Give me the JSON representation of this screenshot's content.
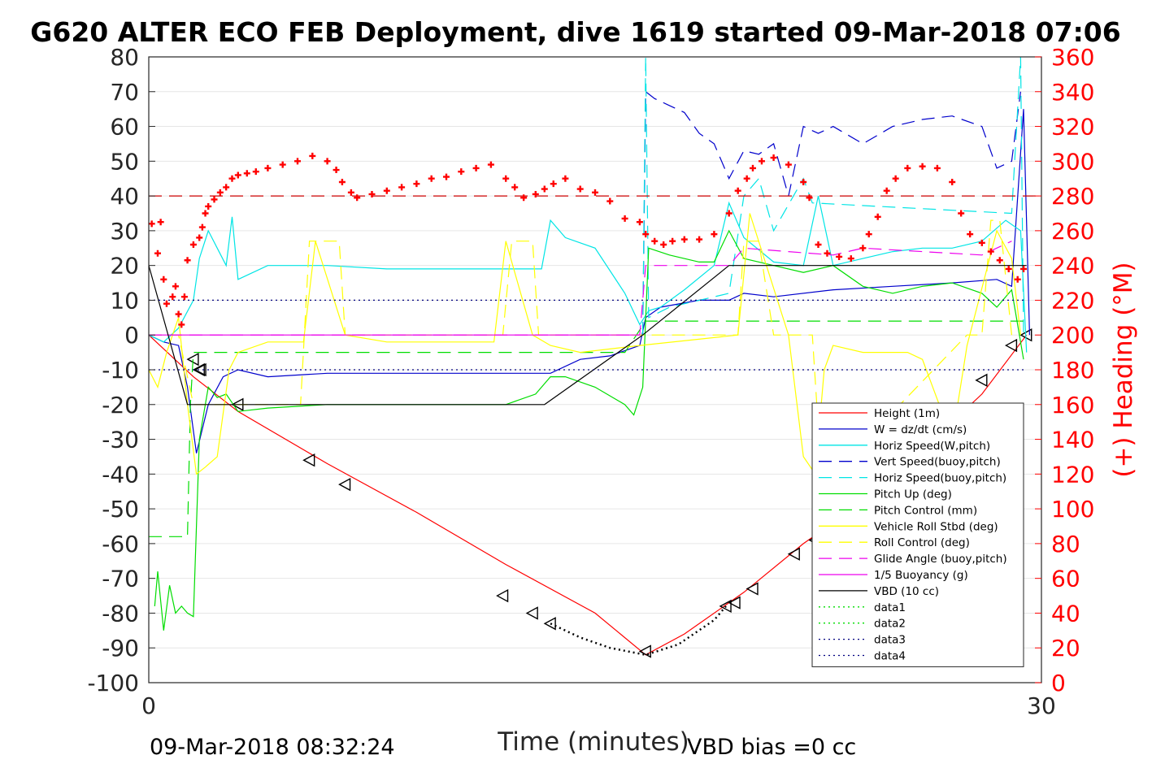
{
  "chart_data": {
    "type": "line",
    "title": "G620 ALTER ECO FEB Deployment, dive 1619 started 09-Mar-2018 07:06",
    "xlabel": "Time (minutes)",
    "ylabel": "",
    "ylabel_right": "(+) Heading (°M)",
    "xlim": [
      0,
      30
    ],
    "ylim": [
      -100,
      80
    ],
    "ylim_right": [
      0,
      360
    ],
    "x_ticks": [
      "0",
      "30"
    ],
    "y_ticks": [
      "80",
      "70",
      "60",
      "50",
      "40",
      "30",
      "20",
      "10",
      "0",
      "-10",
      "-20",
      "-30",
      "-40",
      "-50",
      "-60",
      "-70",
      "-80",
      "-90",
      "-100"
    ],
    "y_ticks_right": [
      "360",
      "340",
      "320",
      "300",
      "280",
      "260",
      "240",
      "220",
      "200",
      "180",
      "160",
      "140",
      "120",
      "100",
      "80",
      "60",
      "40",
      "20",
      "0"
    ],
    "grid": true,
    "legend_position": "bottom-right",
    "colors": {
      "height": "#ff0000",
      "w": "#0000cc",
      "horiz_speed": "#00e5e5",
      "pitch": "#00dd00",
      "roll": "#ffff00",
      "glide": "#ee00ee",
      "vbd": "#000000",
      "heading": "#ff0000",
      "ref_dark_blue": "#000080",
      "ref_red_dashed": "#cc0000"
    },
    "legend": [
      {
        "label": "Height (1m)",
        "color": "#ff0000",
        "dash": "solid"
      },
      {
        "label": "W = dz/dt (cm/s)",
        "color": "#0000cc",
        "dash": "solid"
      },
      {
        "label": "Horiz Speed(W,pitch)",
        "color": "#00e5e5",
        "dash": "solid"
      },
      {
        "label": "Vert Speed(buoy,pitch)",
        "color": "#0000cc",
        "dash": "dashed"
      },
      {
        "label": "Horiz Speed(buoy,pitch)",
        "color": "#00e5e5",
        "dash": "dashed"
      },
      {
        "label": "Pitch Up (deg)",
        "color": "#00dd00",
        "dash": "solid"
      },
      {
        "label": "Pitch Control (mm)",
        "color": "#00dd00",
        "dash": "dashed"
      },
      {
        "label": "Vehicle Roll Stbd (deg)",
        "color": "#ffff00",
        "dash": "solid"
      },
      {
        "label": "Roll Control (deg)",
        "color": "#ffff00",
        "dash": "dashed"
      },
      {
        "label": "Glide Angle (buoy,pitch)",
        "color": "#ee00ee",
        "dash": "dashed"
      },
      {
        "label": "1/5 Buoyancy (g)",
        "color": "#ee00ee",
        "dash": "solid"
      },
      {
        "label": "VBD (10 cc)",
        "color": "#000000",
        "dash": "solid"
      },
      {
        "label": "data1",
        "color": "#00dd00",
        "dash": "dotted"
      },
      {
        "label": "data2",
        "color": "#00dd00",
        "dash": "dotted"
      },
      {
        "label": "data3",
        "color": "#000080",
        "dash": "dotted"
      },
      {
        "label": "data4",
        "color": "#000080",
        "dash": "dotted"
      }
    ],
    "series": [
      {
        "key": "height",
        "legend": "Height (1m)",
        "axis": "left",
        "color": "#ff0000",
        "dash": "solid",
        "x": [
          0,
          1.5,
          3,
          6,
          9,
          12,
          15,
          16.7,
          18,
          20,
          22,
          24,
          26,
          28,
          29.5
        ],
        "y": [
          0,
          -12,
          -22,
          -37,
          -51,
          -66,
          -80,
          -92,
          -86,
          -74,
          -60,
          -48,
          -33,
          -17,
          0
        ]
      },
      {
        "key": "dive_markers",
        "legend": "",
        "axis": "left",
        "color": "#000000",
        "marker": "triangle-left",
        "x": [
          1.5,
          1.7,
          1.75,
          3,
          5.4,
          6.6,
          11.9,
          12.9,
          13.5,
          16.7,
          19.4,
          19.7,
          20.3,
          21.7,
          22.4,
          24.0,
          28.0,
          29.0,
          29.5
        ],
        "y": [
          -7,
          -10,
          -10,
          -20,
          -36,
          -43,
          -75,
          -80,
          -83,
          -91,
          -78,
          -77,
          -73,
          -63,
          -59,
          -47,
          -13,
          -3,
          0
        ]
      },
      {
        "key": "gps_tail",
        "legend": "",
        "axis": "left",
        "color": "#000000",
        "dash": "dotted",
        "x": [
          13.5,
          14.5,
          15.5,
          16.7,
          17.8,
          19.0,
          19.4
        ],
        "y": [
          -83,
          -87,
          -90,
          -92,
          -89,
          -82,
          -78
        ]
      },
      {
        "key": "w",
        "legend": "W = dz/dt (cm/s)",
        "axis": "left",
        "color": "#0000cc",
        "dash": "solid",
        "x": [
          0,
          0.5,
          1.0,
          1.3,
          1.6,
          2.0,
          2.5,
          3.0,
          4.0,
          6.0,
          8.0,
          10.0,
          12.0,
          13.5,
          14.5,
          15.5,
          16.5,
          16.7,
          17.2,
          18.5,
          19.5,
          20.0,
          21.0,
          23.0,
          25.0,
          27.0,
          28.5,
          29.0,
          29.4,
          29.6
        ],
        "y": [
          0,
          -2,
          -3,
          -15,
          -34,
          -20,
          -12,
          -10,
          -12,
          -11,
          -11,
          -11,
          -11,
          -11,
          -7,
          -6,
          -3,
          5,
          8,
          10,
          10,
          12,
          11,
          13,
          14,
          15,
          16,
          14,
          65,
          0
        ]
      },
      {
        "key": "horiz_speed",
        "legend": "Horiz Speed(W,pitch)",
        "axis": "left",
        "color": "#00e5e5",
        "dash": "solid",
        "x": [
          0,
          0.5,
          1.0,
          1.5,
          1.7,
          2.0,
          2.3,
          2.6,
          2.8,
          3.0,
          4.0,
          6.0,
          8.0,
          10.0,
          12.0,
          13.2,
          13.5,
          14.0,
          15.0,
          16.0,
          16.5,
          16.8,
          17.2,
          18.0,
          19.0,
          19.5,
          20.0,
          21.0,
          22.0,
          22.5,
          23.0,
          24.0,
          25.0,
          26.0,
          27.0,
          28.0,
          28.8,
          29.3,
          29.5
        ],
        "y": [
          0,
          -2,
          2,
          10,
          22,
          30,
          25,
          20,
          34,
          16,
          20,
          20,
          19,
          19,
          19,
          19,
          33,
          28,
          25,
          12,
          3,
          7,
          8,
          13,
          20,
          38,
          28,
          21,
          20,
          40,
          20,
          22,
          24,
          25,
          25,
          27,
          33,
          30,
          -5
        ]
      },
      {
        "key": "vert_speed_buoy",
        "legend": "Vert Speed(buoy,pitch)",
        "axis": "left",
        "color": "#0000cc",
        "dash": "dashed",
        "x": [
          16.6,
          16.7,
          17.0,
          17.5,
          18.0,
          18.5,
          19.0,
          19.5,
          20.0,
          20.5,
          21.0,
          21.5,
          22.0,
          22.5,
          23.0,
          24.0,
          25.0,
          26.0,
          27.0,
          28.0,
          28.5,
          29.0,
          29.3
        ],
        "y": [
          0,
          70,
          68,
          66,
          64,
          58,
          55,
          45,
          53,
          52,
          55,
          40,
          60,
          58,
          60,
          55,
          60,
          62,
          63,
          60,
          48,
          50,
          70
        ]
      },
      {
        "key": "horiz_speed_buoy",
        "legend": "Horiz Speed(buoy,pitch)",
        "axis": "left",
        "color": "#00e5e5",
        "dash": "dashed",
        "x": [
          16.6,
          16.7,
          16.8,
          17.5,
          19.5,
          20.0,
          20.5,
          21.0,
          22.0,
          22.3,
          29.0,
          29.3,
          29.4
        ],
        "y": [
          0,
          80,
          5,
          8,
          12,
          40,
          45,
          30,
          45,
          38,
          35,
          80,
          0
        ]
      },
      {
        "key": "pitch",
        "legend": "Pitch Up (deg)",
        "axis": "left",
        "color": "#00dd00",
        "dash": "solid",
        "x": [
          0.2,
          0.3,
          0.5,
          0.7,
          0.9,
          1.1,
          1.3,
          1.5,
          1.7,
          2.0,
          2.3,
          2.6,
          3.0,
          4.0,
          6.0,
          8.0,
          10.0,
          12.0,
          13.0,
          13.5,
          14.0,
          15.0,
          16.0,
          16.3,
          16.6,
          16.8,
          17.5,
          18.5,
          19.0,
          19.5,
          20.0,
          21.0,
          22.0,
          23.0,
          24.0,
          25.0,
          26.0,
          27.0,
          28.0,
          28.5,
          29.0,
          29.4
        ],
        "y": [
          -78,
          -68,
          -85,
          -72,
          -80,
          -78,
          -80,
          -81,
          -30,
          -15,
          -18,
          -17,
          -22,
          -21,
          -20,
          -20,
          -20,
          -20,
          -17,
          -12,
          -12,
          -15,
          -20,
          -23,
          -15,
          25,
          23,
          21,
          21,
          30,
          22,
          20,
          18,
          20,
          14,
          12,
          14,
          15,
          12,
          8,
          13,
          -7
        ]
      },
      {
        "key": "pitch_control",
        "legend": "Pitch Control (mm)",
        "axis": "left",
        "color": "#00dd00",
        "dash": "dashed",
        "x": [
          0,
          1.3,
          1.4,
          1.5,
          8,
          16,
          16.7,
          18,
          24,
          29.5
        ],
        "y": [
          -58,
          -58,
          -20,
          -5,
          -5,
          -5,
          4,
          4,
          4,
          4
        ]
      },
      {
        "key": "roll",
        "legend": "Vehicle Roll Stbd (deg)",
        "axis": "left",
        "color": "#ffff00",
        "dash": "solid",
        "x": [
          0,
          0.3,
          0.6,
          1.0,
          1.3,
          1.6,
          1.9,
          2.3,
          2.7,
          3.0,
          4.0,
          5.2,
          5.6,
          6.6,
          8.0,
          11.6,
          12.0,
          12.9,
          13.5,
          14.5,
          16.5,
          19.8,
          20.2,
          21.5,
          22.0,
          22.4,
          22.7,
          23.0,
          24.0,
          25.5,
          26.0,
          27.0,
          27.5,
          28.5,
          29.0,
          29.3
        ],
        "y": [
          -10,
          -15,
          -5,
          5,
          -20,
          -40,
          -38,
          -35,
          -10,
          -5,
          -2,
          -2,
          27,
          0,
          -2,
          -2,
          27,
          0,
          -3,
          -5,
          -3,
          0,
          35,
          0,
          -35,
          -40,
          -10,
          -3,
          -5,
          -5,
          -7,
          -30,
          -3,
          30,
          22,
          0
        ]
      },
      {
        "key": "roll_control",
        "legend": "Roll Control (deg)",
        "axis": "left",
        "color": "#ffff00",
        "dash": "dashed",
        "x": [
          0,
          1,
          1.5,
          5.1,
          5.4,
          6.4,
          6.6,
          11.9,
          12.2,
          12.9,
          13.1,
          19.8,
          20.0,
          20.5,
          21.0,
          22.3,
          22.6,
          23.0,
          27.5,
          28.0,
          28.3,
          28.6,
          29.0
        ],
        "y": [
          0,
          0,
          -20,
          -20,
          27,
          27,
          0,
          0,
          27,
          27,
          0,
          0,
          27,
          27,
          0,
          0,
          -40,
          -40,
          0,
          0,
          33,
          33,
          0
        ]
      },
      {
        "key": "glide_angle",
        "legend": "Glide Angle (buoy,pitch)",
        "axis": "left",
        "color": "#ee00ee",
        "dash": "dashed",
        "x": [
          0,
          16.5,
          16.7,
          19.5,
          20.0,
          21.5,
          23.0,
          24.0,
          26.0,
          28.0,
          29.0
        ],
        "y": [
          0,
          0,
          20,
          20,
          25,
          24,
          23,
          25,
          24,
          23,
          27
        ]
      },
      {
        "key": "buoyancy",
        "legend": "1/5 Buoyancy (g)",
        "axis": "left",
        "color": "#ee00ee",
        "dash": "solid",
        "x": [
          0,
          16.5
        ],
        "y": [
          0,
          0
        ]
      },
      {
        "key": "vbd",
        "legend": "VBD (10 cc)",
        "axis": "left",
        "color": "#000000",
        "dash": "solid",
        "x": [
          0,
          1.3,
          1.4,
          13.3,
          16.6,
          19.5,
          29.5
        ],
        "y": [
          20,
          -20,
          -20,
          -20,
          0,
          20,
          20
        ]
      },
      {
        "key": "data1",
        "legend": "data1",
        "axis": "left",
        "color": "#000080",
        "dash": "dotted",
        "x": [
          0,
          29.5
        ],
        "y": [
          10,
          10
        ]
      },
      {
        "key": "data2",
        "legend": "data2",
        "axis": "left",
        "color": "#000080",
        "dash": "dotted",
        "x": [
          0,
          29.5
        ],
        "y": [
          -10,
          -10
        ]
      },
      {
        "key": "ref_40",
        "legend": "",
        "axis": "left",
        "color": "#cc0000",
        "dash": "dashed",
        "x": [
          0,
          30
        ],
        "y": [
          40,
          40
        ]
      },
      {
        "key": "heading",
        "legend": "(+) Heading (°M)",
        "axis": "right",
        "color": "#ff0000",
        "marker": "plus",
        "x": [
          0.1,
          0.3,
          0.4,
          0.5,
          0.6,
          0.8,
          0.9,
          1.0,
          1.1,
          1.2,
          1.3,
          1.5,
          1.7,
          1.8,
          1.9,
          2.0,
          2.2,
          2.4,
          2.6,
          2.8,
          3.0,
          3.3,
          3.6,
          4.0,
          4.5,
          5.0,
          5.5,
          6.0,
          6.3,
          6.5,
          6.8,
          7.0,
          7.5,
          8.0,
          8.5,
          9.0,
          9.5,
          10.0,
          10.5,
          11.0,
          11.5,
          12.0,
          12.3,
          12.6,
          13.0,
          13.3,
          13.6,
          14.0,
          14.5,
          15.0,
          15.5,
          16.0,
          16.5,
          16.7,
          17.0,
          17.3,
          17.6,
          18.0,
          18.5,
          19.0,
          19.5,
          19.8,
          20.1,
          20.3,
          20.6,
          21.0,
          21.5,
          22.0,
          22.2,
          22.5,
          22.8,
          23.2,
          23.6,
          24.0,
          24.2,
          24.5,
          24.8,
          25.1,
          25.5,
          26.0,
          26.5,
          27.0,
          27.3,
          27.6,
          28.0,
          28.3,
          28.6,
          28.9,
          29.2,
          29.4
        ],
        "y": [
          264,
          247,
          265,
          232,
          218,
          222,
          228,
          212,
          206,
          222,
          243,
          252,
          256,
          262,
          270,
          274,
          278,
          282,
          285,
          290,
          292,
          293,
          294,
          296,
          298,
          300,
          303,
          300,
          295,
          288,
          282,
          279,
          281,
          283,
          285,
          287,
          290,
          291,
          294,
          296,
          298,
          290,
          285,
          279,
          281,
          284,
          287,
          290,
          284,
          282,
          277,
          267,
          265,
          258,
          254,
          252,
          254,
          255,
          255,
          258,
          270,
          283,
          290,
          296,
          300,
          302,
          298,
          288,
          279,
          252,
          247,
          245,
          244,
          250,
          258,
          268,
          283,
          290,
          296,
          297,
          296,
          288,
          270,
          258,
          253,
          248,
          243,
          238,
          232,
          238
        ]
      }
    ],
    "footer": {
      "left": "09-Mar-2018 08:32:24",
      "right": "VBD bias =0 cc"
    }
  }
}
